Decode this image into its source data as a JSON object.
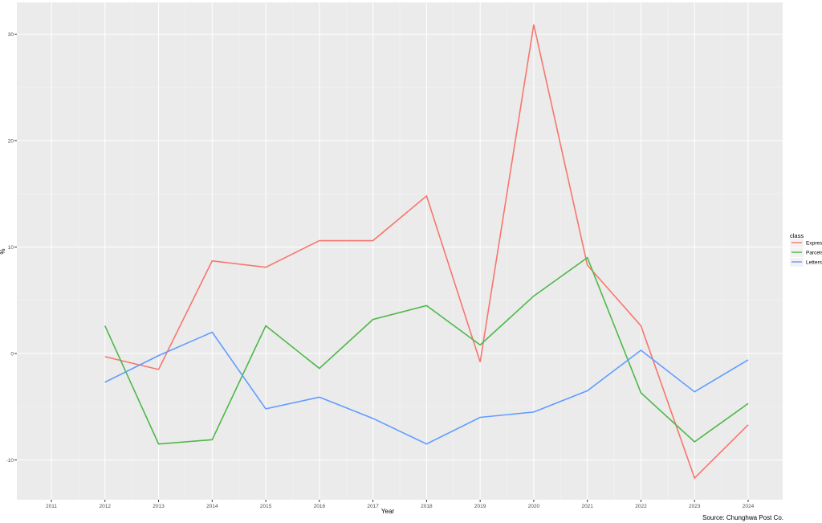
{
  "chart_data": {
    "type": "line",
    "xlabel": "Year",
    "ylabel": "%",
    "caption": "Source: Chunghwa Post Co.",
    "x": [
      2012,
      2013,
      2014,
      2015,
      2016,
      2017,
      2018,
      2019,
      2020,
      2021,
      2022,
      2023,
      2024
    ],
    "x_ticks": [
      "2011",
      "2012",
      "2013",
      "2014",
      "2015",
      "2016",
      "2017",
      "2018",
      "2019",
      "2020",
      "2021",
      "2022",
      "2023",
      "2024"
    ],
    "y_ticks": [
      "-10",
      "0",
      "10",
      "20",
      "30"
    ],
    "ylim": [
      -13.9,
      33
    ],
    "grid": true,
    "legend": {
      "title": "class",
      "position": "right"
    },
    "series": [
      {
        "name": "Express",
        "color": "#F8766D",
        "values": [
          -0.3,
          -1.5,
          8.7,
          8.1,
          10.6,
          10.6,
          14.8,
          -0.8,
          30.9,
          8.3,
          2.6,
          -11.7,
          -6.7
        ]
      },
      {
        "name": "Parcels",
        "color": "#4DB848",
        "values": [
          2.6,
          -8.5,
          -8.1,
          2.6,
          -1.4,
          3.2,
          4.5,
          0.8,
          5.4,
          9.0,
          -3.7,
          -8.3,
          -4.7
        ]
      },
      {
        "name": "Letters",
        "color": "#619CFF",
        "values": [
          -2.7,
          -0.2,
          2.0,
          -5.2,
          -4.1,
          -6.1,
          -8.5,
          -6.0,
          -5.5,
          -3.5,
          0.3,
          -3.6,
          -0.6
        ]
      }
    ]
  }
}
